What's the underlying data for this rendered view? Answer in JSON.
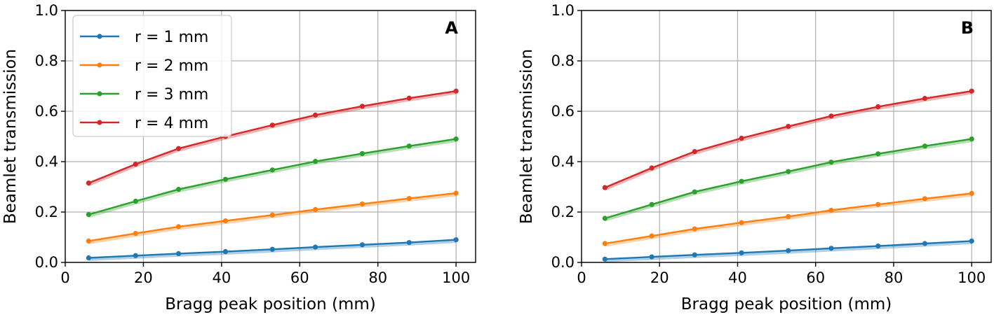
{
  "chart_data": [
    {
      "type": "line",
      "panel": "A",
      "xlabel": "Bragg peak position (mm)",
      "ylabel": "Beamlet transmission",
      "xlim": [
        0,
        105
      ],
      "ylim": [
        0,
        1.0
      ],
      "xticks": [
        0,
        20,
        40,
        60,
        80,
        100
      ],
      "yticks": [
        0.0,
        0.2,
        0.4,
        0.6,
        0.8,
        1.0
      ],
      "xtick_labels": [
        "0",
        "20",
        "40",
        "60",
        "80",
        "100"
      ],
      "ytick_labels": [
        "0.0",
        "0.2",
        "0.4",
        "0.6",
        "0.8",
        "1.0"
      ],
      "grid": true,
      "legend": "top-left",
      "x": [
        6,
        18,
        29,
        41,
        53,
        64,
        76,
        88,
        100
      ],
      "series": [
        {
          "name": "r = 1 mm",
          "color": "#1f77b4",
          "values": [
            0.018,
            0.027,
            0.035,
            0.043,
            0.052,
            0.061,
            0.07,
            0.079,
            0.09
          ]
        },
        {
          "name": "r = 2 mm",
          "color": "#ff7f0e",
          "values": [
            0.085,
            0.115,
            0.142,
            0.165,
            0.188,
            0.21,
            0.232,
            0.254,
            0.275
          ]
        },
        {
          "name": "r = 3 mm",
          "color": "#2ca02c",
          "values": [
            0.19,
            0.243,
            0.29,
            0.33,
            0.367,
            0.401,
            0.432,
            0.462,
            0.49
          ]
        },
        {
          "name": "r = 4 mm",
          "color": "#d62728",
          "values": [
            0.315,
            0.39,
            0.452,
            0.5,
            0.545,
            0.585,
            0.62,
            0.652,
            0.68
          ]
        }
      ]
    },
    {
      "type": "line",
      "panel": "B",
      "xlabel": "Bragg peak position (mm)",
      "ylabel": "Beamlet transmission",
      "xlim": [
        0,
        105
      ],
      "ylim": [
        0,
        1.0
      ],
      "xticks": [
        0,
        20,
        40,
        60,
        80,
        100
      ],
      "yticks": [
        0.0,
        0.2,
        0.4,
        0.6,
        0.8,
        1.0
      ],
      "xtick_labels": [
        "0",
        "20",
        "40",
        "60",
        "80",
        "100"
      ],
      "ytick_labels": [
        "0.0",
        "0.2",
        "0.4",
        "0.6",
        "0.8",
        "1.0"
      ],
      "grid": true,
      "legend": "none",
      "x": [
        6,
        18,
        29,
        41,
        53,
        64,
        76,
        88,
        100
      ],
      "series": [
        {
          "name": "r = 1 mm",
          "color": "#1f77b4",
          "values": [
            0.013,
            0.022,
            0.03,
            0.038,
            0.047,
            0.056,
            0.065,
            0.075,
            0.085
          ]
        },
        {
          "name": "r = 2 mm",
          "color": "#ff7f0e",
          "values": [
            0.075,
            0.105,
            0.133,
            0.158,
            0.182,
            0.207,
            0.23,
            0.253,
            0.274
          ]
        },
        {
          "name": "r = 3 mm",
          "color": "#2ca02c",
          "values": [
            0.175,
            0.23,
            0.28,
            0.322,
            0.361,
            0.398,
            0.431,
            0.462,
            0.49
          ]
        },
        {
          "name": "r = 4 mm",
          "color": "#d62728",
          "values": [
            0.297,
            0.375,
            0.44,
            0.493,
            0.54,
            0.581,
            0.618,
            0.651,
            0.68
          ]
        }
      ]
    }
  ]
}
